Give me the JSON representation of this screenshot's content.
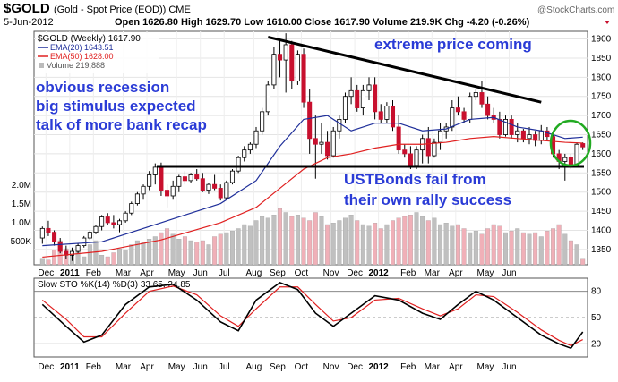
{
  "header": {
    "symbol": "$GOLD",
    "description": "(Gold - Spot Price (EOD)) CME",
    "watermark": "@StockCharts.com",
    "date": "5-Jun-2012",
    "ohlc_text": "Open 1626.80  High 1629.70  Low 1610.00  Close 1617.90  Volume 219.9K  Chg -4.20 (-0.26%)",
    "legend": {
      "main": "$GOLD (Weekly) 1617.90",
      "ema20": "EMA(20) 1643.51",
      "ema50": "EMA(50) 1628.00",
      "volume": "Volume 219,888"
    }
  },
  "colors": {
    "up_candle": "#ffffff",
    "down_candle": "#c8102e",
    "ema20": "#1f2f9a",
    "ema50": "#e02020",
    "volume_up": "#c0c0c0",
    "volume_down": "#f0b0b8",
    "annotation": "#2a3bd6",
    "circle": "#22aa22",
    "sto_k": "#000000",
    "sto_d": "#e02020"
  },
  "annotations": {
    "left_1": "obvious recession",
    "left_2": "big stimulus expected",
    "left_3": "talk of more bank recap",
    "top_right": "extreme price coming",
    "bottom_1": "USTBonds fail from",
    "bottom_2": "their own rally success"
  },
  "chart_data": [
    {
      "type": "candlestick",
      "timeframe": "Weekly",
      "x_ticks": [
        "Dec",
        "2011",
        "Feb",
        "Mar",
        "Apr",
        "May",
        "Jun",
        "Jul",
        "Aug",
        "Sep",
        "Oct",
        "Nov",
        "Dec",
        "2012",
        "Feb",
        "Mar",
        "Apr",
        "May",
        "Jun"
      ],
      "y_ticks": [
        1350,
        1400,
        1450,
        1500,
        1550,
        1600,
        1650,
        1700,
        1750,
        1800,
        1850,
        1900
      ],
      "volume_ticks": [
        "500K",
        "1.0M",
        "1.5M",
        "2.0M"
      ],
      "ylim": [
        1310,
        1920
      ],
      "candles": [
        {
          "o": 1380,
          "h": 1410,
          "l": 1365,
          "c": 1405
        },
        {
          "o": 1405,
          "h": 1425,
          "l": 1385,
          "c": 1395
        },
        {
          "o": 1395,
          "h": 1400,
          "l": 1360,
          "c": 1370
        },
        {
          "o": 1370,
          "h": 1380,
          "l": 1340,
          "c": 1345
        },
        {
          "o": 1345,
          "h": 1360,
          "l": 1325,
          "c": 1335
        },
        {
          "o": 1335,
          "h": 1355,
          "l": 1320,
          "c": 1345
        },
        {
          "o": 1345,
          "h": 1365,
          "l": 1340,
          "c": 1360
        },
        {
          "o": 1360,
          "h": 1385,
          "l": 1355,
          "c": 1380
        },
        {
          "o": 1380,
          "h": 1400,
          "l": 1375,
          "c": 1395
        },
        {
          "o": 1395,
          "h": 1415,
          "l": 1390,
          "c": 1410
        },
        {
          "o": 1410,
          "h": 1440,
          "l": 1400,
          "c": 1435
        },
        {
          "o": 1435,
          "h": 1445,
          "l": 1415,
          "c": 1420
        },
        {
          "o": 1420,
          "h": 1440,
          "l": 1405,
          "c": 1415
        },
        {
          "o": 1415,
          "h": 1430,
          "l": 1395,
          "c": 1425
        },
        {
          "o": 1425,
          "h": 1450,
          "l": 1420,
          "c": 1445
        },
        {
          "o": 1445,
          "h": 1475,
          "l": 1440,
          "c": 1470
        },
        {
          "o": 1470,
          "h": 1500,
          "l": 1465,
          "c": 1495
        },
        {
          "o": 1495,
          "h": 1520,
          "l": 1480,
          "c": 1515
        },
        {
          "o": 1515,
          "h": 1555,
          "l": 1505,
          "c": 1545
        },
        {
          "o": 1545,
          "h": 1575,
          "l": 1520,
          "c": 1565
        },
        {
          "o": 1565,
          "h": 1577,
          "l": 1490,
          "c": 1505
        },
        {
          "o": 1505,
          "h": 1520,
          "l": 1460,
          "c": 1490
        },
        {
          "o": 1490,
          "h": 1530,
          "l": 1480,
          "c": 1515
        },
        {
          "o": 1515,
          "h": 1545,
          "l": 1500,
          "c": 1540
        },
        {
          "o": 1540,
          "h": 1555,
          "l": 1520,
          "c": 1530
        },
        {
          "o": 1530,
          "h": 1550,
          "l": 1525,
          "c": 1545
        },
        {
          "o": 1545,
          "h": 1560,
          "l": 1530,
          "c": 1535
        },
        {
          "o": 1535,
          "h": 1550,
          "l": 1500,
          "c": 1505
        },
        {
          "o": 1505,
          "h": 1525,
          "l": 1495,
          "c": 1520
        },
        {
          "o": 1520,
          "h": 1545,
          "l": 1505,
          "c": 1510
        },
        {
          "o": 1510,
          "h": 1520,
          "l": 1478,
          "c": 1485
        },
        {
          "o": 1485,
          "h": 1530,
          "l": 1480,
          "c": 1525
        },
        {
          "o": 1525,
          "h": 1560,
          "l": 1520,
          "c": 1555
        },
        {
          "o": 1555,
          "h": 1595,
          "l": 1550,
          "c": 1590
        },
        {
          "o": 1590,
          "h": 1620,
          "l": 1580,
          "c": 1610
        },
        {
          "o": 1610,
          "h": 1630,
          "l": 1600,
          "c": 1625
        },
        {
          "o": 1625,
          "h": 1670,
          "l": 1615,
          "c": 1660
        },
        {
          "o": 1660,
          "h": 1720,
          "l": 1650,
          "c": 1710
        },
        {
          "o": 1710,
          "h": 1790,
          "l": 1700,
          "c": 1780
        },
        {
          "o": 1780,
          "h": 1880,
          "l": 1770,
          "c": 1860
        },
        {
          "o": 1860,
          "h": 1900,
          "l": 1800,
          "c": 1845
        },
        {
          "o": 1845,
          "h": 1915,
          "l": 1760,
          "c": 1885
        },
        {
          "o": 1885,
          "h": 1895,
          "l": 1770,
          "c": 1790
        },
        {
          "o": 1790,
          "h": 1870,
          "l": 1780,
          "c": 1860
        },
        {
          "o": 1860,
          "h": 1875,
          "l": 1720,
          "c": 1735
        },
        {
          "o": 1735,
          "h": 1770,
          "l": 1600,
          "c": 1640
        },
        {
          "o": 1640,
          "h": 1700,
          "l": 1535,
          "c": 1625
        },
        {
          "o": 1625,
          "h": 1680,
          "l": 1600,
          "c": 1630
        },
        {
          "o": 1630,
          "h": 1660,
          "l": 1585,
          "c": 1595
        },
        {
          "o": 1595,
          "h": 1670,
          "l": 1590,
          "c": 1660
        },
        {
          "o": 1660,
          "h": 1700,
          "l": 1640,
          "c": 1690
        },
        {
          "o": 1690,
          "h": 1760,
          "l": 1680,
          "c": 1750
        },
        {
          "o": 1750,
          "h": 1800,
          "l": 1730,
          "c": 1765
        },
        {
          "o": 1765,
          "h": 1780,
          "l": 1710,
          "c": 1720
        },
        {
          "o": 1720,
          "h": 1780,
          "l": 1700,
          "c": 1765
        },
        {
          "o": 1765,
          "h": 1800,
          "l": 1740,
          "c": 1780
        },
        {
          "o": 1780,
          "h": 1800,
          "l": 1690,
          "c": 1710
        },
        {
          "o": 1710,
          "h": 1730,
          "l": 1680,
          "c": 1690
        },
        {
          "o": 1690,
          "h": 1735,
          "l": 1680,
          "c": 1725
        },
        {
          "o": 1725,
          "h": 1740,
          "l": 1660,
          "c": 1670
        },
        {
          "o": 1670,
          "h": 1700,
          "l": 1600,
          "c": 1610
        },
        {
          "o": 1610,
          "h": 1625,
          "l": 1590,
          "c": 1600
        },
        {
          "o": 1600,
          "h": 1620,
          "l": 1560,
          "c": 1570
        },
        {
          "o": 1570,
          "h": 1620,
          "l": 1560,
          "c": 1610
        },
        {
          "o": 1610,
          "h": 1650,
          "l": 1575,
          "c": 1640
        },
        {
          "o": 1640,
          "h": 1670,
          "l": 1575,
          "c": 1595
        },
        {
          "o": 1595,
          "h": 1640,
          "l": 1590,
          "c": 1630
        },
        {
          "o": 1630,
          "h": 1680,
          "l": 1610,
          "c": 1660
        },
        {
          "o": 1660,
          "h": 1680,
          "l": 1640,
          "c": 1670
        },
        {
          "o": 1670,
          "h": 1740,
          "l": 1660,
          "c": 1720
        },
        {
          "o": 1720,
          "h": 1750,
          "l": 1700,
          "c": 1710
        },
        {
          "o": 1710,
          "h": 1720,
          "l": 1680,
          "c": 1690
        },
        {
          "o": 1690,
          "h": 1760,
          "l": 1680,
          "c": 1750
        },
        {
          "o": 1750,
          "h": 1770,
          "l": 1740,
          "c": 1760
        },
        {
          "o": 1760,
          "h": 1790,
          "l": 1720,
          "c": 1730
        },
        {
          "o": 1730,
          "h": 1750,
          "l": 1690,
          "c": 1700
        },
        {
          "o": 1700,
          "h": 1720,
          "l": 1680,
          "c": 1690
        },
        {
          "o": 1690,
          "h": 1710,
          "l": 1640,
          "c": 1650
        },
        {
          "o": 1650,
          "h": 1700,
          "l": 1645,
          "c": 1690
        },
        {
          "o": 1690,
          "h": 1700,
          "l": 1640,
          "c": 1650
        },
        {
          "o": 1650,
          "h": 1680,
          "l": 1630,
          "c": 1660
        },
        {
          "o": 1660,
          "h": 1665,
          "l": 1630,
          "c": 1640
        },
        {
          "o": 1640,
          "h": 1670,
          "l": 1625,
          "c": 1650
        },
        {
          "o": 1650,
          "h": 1660,
          "l": 1620,
          "c": 1635
        },
        {
          "o": 1635,
          "h": 1675,
          "l": 1625,
          "c": 1660
        },
        {
          "o": 1660,
          "h": 1670,
          "l": 1635,
          "c": 1645
        },
        {
          "o": 1645,
          "h": 1655,
          "l": 1590,
          "c": 1600
        },
        {
          "o": 1600,
          "h": 1610,
          "l": 1560,
          "c": 1580
        },
        {
          "o": 1580,
          "h": 1600,
          "l": 1530,
          "c": 1590
        },
        {
          "o": 1590,
          "h": 1600,
          "l": 1560,
          "c": 1570
        },
        {
          "o": 1570,
          "h": 1630,
          "l": 1565,
          "c": 1625
        },
        {
          "o": 1626.8,
          "h": 1629.7,
          "l": 1610,
          "c": 1617.9
        }
      ],
      "ema20": [
        [
          0,
          1360
        ],
        [
          10,
          1370
        ],
        [
          20,
          1420
        ],
        [
          30,
          1470
        ],
        [
          36,
          1530
        ],
        [
          40,
          1620
        ],
        [
          44,
          1690
        ],
        [
          48,
          1700
        ],
        [
          52,
          1660
        ],
        [
          56,
          1680
        ],
        [
          60,
          1680
        ],
        [
          64,
          1660
        ],
        [
          68,
          1665
        ],
        [
          72,
          1690
        ],
        [
          76,
          1695
        ],
        [
          80,
          1670
        ],
        [
          84,
          1660
        ],
        [
          88,
          1640
        ],
        [
          91,
          1643.51
        ]
      ],
      "ema50": [
        [
          0,
          1330
        ],
        [
          10,
          1345
        ],
        [
          20,
          1375
        ],
        [
          30,
          1420
        ],
        [
          36,
          1460
        ],
        [
          40,
          1510
        ],
        [
          44,
          1560
        ],
        [
          48,
          1590
        ],
        [
          52,
          1600
        ],
        [
          56,
          1615
        ],
        [
          60,
          1625
        ],
        [
          64,
          1625
        ],
        [
          68,
          1630
        ],
        [
          72,
          1640
        ],
        [
          76,
          1645
        ],
        [
          80,
          1640
        ],
        [
          84,
          1635
        ],
        [
          88,
          1630
        ],
        [
          91,
          1628
        ]
      ],
      "resistance_line": [
        [
          38,
          1905
        ],
        [
          84,
          1735
        ]
      ],
      "support_line": [
        [
          18,
          1567
        ],
        [
          91,
          1567
        ]
      ],
      "volume_relative": [
        0.08,
        0.06,
        0.18,
        0.3,
        0.2,
        0.15,
        0.18,
        0.1,
        0.25,
        0.3,
        0.12,
        0.1,
        0.15,
        0.2,
        0.18,
        0.25,
        0.3,
        0.28,
        0.32,
        0.35,
        0.4,
        0.45,
        0.38,
        0.32,
        0.35,
        0.3,
        0.28,
        0.3,
        0.25,
        0.35,
        0.38,
        0.4,
        0.42,
        0.45,
        0.5,
        0.48,
        0.55,
        0.6,
        0.58,
        0.62,
        0.7,
        0.65,
        0.6,
        0.62,
        0.58,
        0.55,
        0.65,
        0.6,
        0.5,
        0.52,
        0.55,
        0.58,
        0.62,
        0.55,
        0.5,
        0.48,
        0.52,
        0.45,
        0.5,
        0.55,
        0.58,
        0.6,
        0.62,
        0.65,
        0.6,
        0.55,
        0.58,
        0.5,
        0.52,
        0.48,
        0.5,
        0.45,
        0.4,
        0.42,
        0.38,
        0.45,
        0.5,
        0.48,
        0.4,
        0.42,
        0.45,
        0.4,
        0.38,
        0.4,
        0.35,
        0.42,
        0.45,
        0.5,
        0.38,
        0.3,
        0.25,
        0.08
      ]
    },
    {
      "type": "line",
      "title": "Slow STO %K(14) %D(3) 33.65, 24.85",
      "y_ticks": [
        20,
        50,
        80
      ],
      "ylim": [
        5,
        95
      ],
      "series": [
        {
          "name": "%K",
          "values": [
            [
              0,
              65
            ],
            [
              4,
              40
            ],
            [
              7,
              22
            ],
            [
              10,
              30
            ],
            [
              14,
              65
            ],
            [
              18,
              85
            ],
            [
              22,
              88
            ],
            [
              26,
              70
            ],
            [
              30,
              45
            ],
            [
              33,
              35
            ],
            [
              36,
              70
            ],
            [
              40,
              90
            ],
            [
              43,
              82
            ],
            [
              46,
              55
            ],
            [
              49,
              40
            ],
            [
              52,
              55
            ],
            [
              56,
              75
            ],
            [
              60,
              70
            ],
            [
              64,
              55
            ],
            [
              67,
              48
            ],
            [
              70,
              65
            ],
            [
              73,
              80
            ],
            [
              76,
              70
            ],
            [
              80,
              50
            ],
            [
              84,
              30
            ],
            [
              87,
              20
            ],
            [
              89,
              15
            ],
            [
              91,
              33.65
            ]
          ]
        },
        {
          "name": "%D",
          "values": [
            [
              0,
              70
            ],
            [
              4,
              48
            ],
            [
              7,
              28
            ],
            [
              10,
              28
            ],
            [
              14,
              55
            ],
            [
              18,
              80
            ],
            [
              22,
              86
            ],
            [
              26,
              76
            ],
            [
              30,
              52
            ],
            [
              33,
              40
            ],
            [
              36,
              60
            ],
            [
              40,
              85
            ],
            [
              43,
              85
            ],
            [
              46,
              65
            ],
            [
              49,
              46
            ],
            [
              52,
              50
            ],
            [
              56,
              70
            ],
            [
              60,
              72
            ],
            [
              64,
              60
            ],
            [
              67,
              52
            ],
            [
              70,
              60
            ],
            [
              73,
              76
            ],
            [
              76,
              74
            ],
            [
              80,
              56
            ],
            [
              84,
              36
            ],
            [
              87,
              24
            ],
            [
              89,
              18
            ],
            [
              91,
              24.85
            ]
          ]
        }
      ]
    }
  ]
}
